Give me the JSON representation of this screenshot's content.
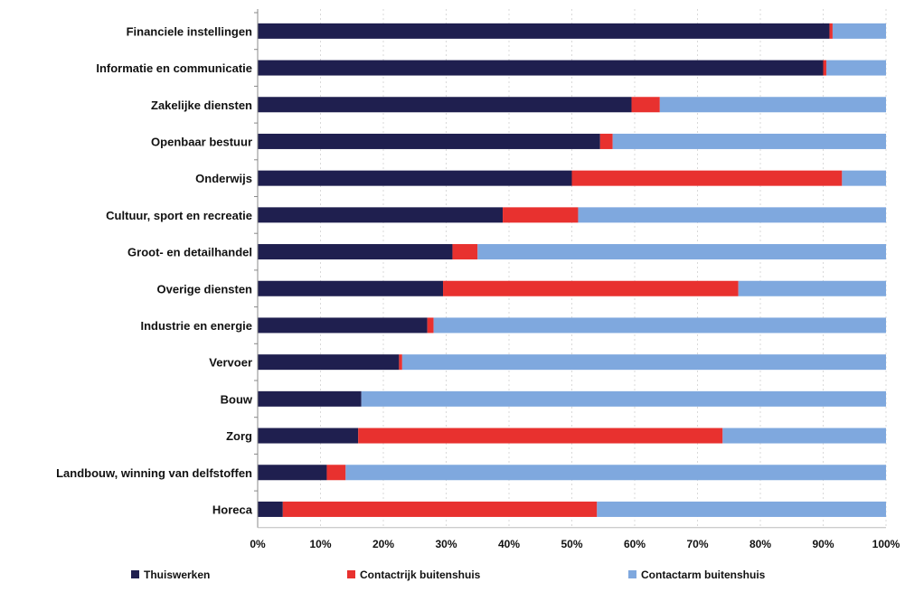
{
  "chart_data": {
    "type": "bar",
    "orientation": "horizontal",
    "stacked": true,
    "title": "",
    "xlabel": "",
    "ylabel": "",
    "xlim": [
      0,
      100
    ],
    "x_ticks": [
      "0%",
      "10%",
      "20%",
      "30%",
      "40%",
      "50%",
      "60%",
      "70%",
      "80%",
      "90%",
      "100%"
    ],
    "grid": true,
    "legend_position": "bottom",
    "categories": [
      "Financiele instellingen",
      "Informatie en communicatie",
      "Zakelijke diensten",
      "Openbaar bestuur",
      "Onderwijs",
      "Cultuur, sport en recreatie",
      "Groot- en detailhandel",
      "Overige diensten",
      "Industrie en energie",
      "Vervoer",
      "Bouw",
      "Zorg",
      "Landbouw, winning van delfstoffen",
      "Horeca"
    ],
    "series": [
      {
        "name": "Thuiswerken",
        "color": "#1f1f4f",
        "values": [
          91,
          90,
          59.5,
          54.5,
          50,
          39,
          31,
          29.5,
          27,
          22.5,
          16.5,
          16,
          11,
          4
        ]
      },
      {
        "name": "Contactrijk buitenshuis",
        "color": "#e8312f",
        "values": [
          0.5,
          0.5,
          4.5,
          2,
          43,
          12,
          4,
          47,
          1,
          0.5,
          0,
          58,
          3,
          50
        ]
      },
      {
        "name": "Contactarm buitenshuis",
        "color": "#7fa8de",
        "values": [
          8.5,
          9.5,
          36,
          43.5,
          7,
          49,
          65,
          23.5,
          72,
          77,
          83.5,
          26,
          86,
          46
        ]
      }
    ]
  }
}
